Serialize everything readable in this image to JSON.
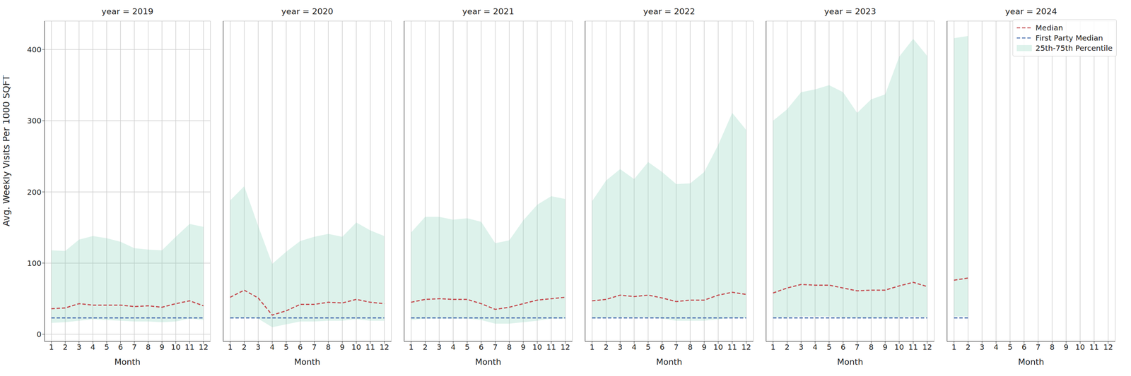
{
  "chart_data": [
    {
      "type": "line",
      "title": "year = 2019",
      "x_label": "Month",
      "y_label": "Avg. Weekly Visits Per 1000 SQFT",
      "x": [
        1,
        2,
        3,
        4,
        5,
        6,
        7,
        8,
        9,
        10,
        11,
        12
      ],
      "xlim": [
        0.5,
        12.5
      ],
      "xticks": [
        1,
        2,
        3,
        4,
        5,
        6,
        7,
        8,
        9,
        10,
        11,
        12
      ],
      "ylim": [
        -10,
        440
      ],
      "yticks": [
        0,
        100,
        200,
        300,
        400
      ],
      "grid": true,
      "series": [
        {
          "name": "Median",
          "type": "line",
          "color": "#c44e52",
          "line_style": "dashed",
          "values": [
            36,
            37,
            43,
            41,
            41,
            41,
            39,
            40,
            38,
            43,
            47,
            40
          ]
        },
        {
          "name": "First Party Median",
          "type": "line",
          "color": "#4c72b0",
          "line_style": "dashed",
          "values": [
            23,
            23,
            23,
            23,
            23,
            23,
            23,
            23,
            23,
            23,
            23,
            23
          ]
        },
        {
          "name": "25th-75th Percentile",
          "type": "area",
          "color": "#8fd3bd",
          "low": [
            16,
            17,
            19,
            21,
            20,
            19,
            18,
            18,
            17,
            18,
            22,
            20
          ],
          "high": [
            118,
            117,
            133,
            138,
            135,
            130,
            121,
            119,
            118,
            137,
            155,
            151
          ]
        }
      ]
    },
    {
      "type": "line",
      "title": "year = 2020",
      "x_label": "Month",
      "x": [
        1,
        2,
        3,
        4,
        5,
        6,
        7,
        8,
        9,
        10,
        11,
        12
      ],
      "xlim": [
        0.5,
        12.5
      ],
      "xticks": [
        1,
        2,
        3,
        4,
        5,
        6,
        7,
        8,
        9,
        10,
        11,
        12
      ],
      "ylim": [
        -10,
        440
      ],
      "yticks": [
        0,
        100,
        200,
        300,
        400
      ],
      "grid": true,
      "tick_labels": "x",
      "series": [
        {
          "name": "Median",
          "type": "line",
          "color": "#c44e52",
          "line_style": "dashed",
          "values": [
            52,
            62,
            51,
            27,
            33,
            42,
            42,
            45,
            44,
            49,
            45,
            43
          ]
        },
        {
          "name": "First Party Median",
          "type": "line",
          "color": "#4c72b0",
          "line_style": "dashed",
          "values": [
            23,
            23,
            23,
            23,
            23,
            23,
            23,
            23,
            23,
            23,
            23,
            23
          ]
        },
        {
          "name": "25th-75th Percentile",
          "type": "area",
          "color": "#8fd3bd",
          "low": [
            22,
            24,
            22,
            10,
            14,
            18,
            18,
            19,
            19,
            21,
            19,
            19
          ],
          "high": [
            188,
            208,
            152,
            99,
            116,
            131,
            137,
            141,
            137,
            157,
            146,
            138
          ]
        }
      ]
    },
    {
      "type": "line",
      "title": "year = 2021",
      "x_label": "Month",
      "x": [
        1,
        2,
        3,
        4,
        5,
        6,
        7,
        8,
        9,
        10,
        11,
        12
      ],
      "xlim": [
        0.5,
        12.5
      ],
      "xticks": [
        1,
        2,
        3,
        4,
        5,
        6,
        7,
        8,
        9,
        10,
        11,
        12
      ],
      "ylim": [
        -10,
        440
      ],
      "yticks": [
        0,
        100,
        200,
        300,
        400
      ],
      "grid": true,
      "tick_labels": "x",
      "series": [
        {
          "name": "Median",
          "type": "line",
          "color": "#c44e52",
          "line_style": "dashed",
          "values": [
            45,
            49,
            50,
            49,
            49,
            43,
            35,
            38,
            43,
            48,
            50,
            52
          ]
        },
        {
          "name": "First Party Median",
          "type": "line",
          "color": "#4c72b0",
          "line_style": "dashed",
          "values": [
            23,
            23,
            23,
            23,
            23,
            23,
            23,
            23,
            23,
            23,
            23,
            23
          ]
        },
        {
          "name": "25th-75th Percentile",
          "type": "area",
          "color": "#8fd3bd",
          "low": [
            20,
            22,
            22,
            22,
            22,
            20,
            15,
            15,
            17,
            19,
            22,
            22
          ],
          "high": [
            143,
            165,
            165,
            161,
            163,
            158,
            128,
            132,
            160,
            182,
            194,
            190
          ]
        }
      ]
    },
    {
      "type": "line",
      "title": "year = 2022",
      "x_label": "Month",
      "x": [
        1,
        2,
        3,
        4,
        5,
        6,
        7,
        8,
        9,
        10,
        11,
        12
      ],
      "xlim": [
        0.5,
        12.5
      ],
      "xticks": [
        1,
        2,
        3,
        4,
        5,
        6,
        7,
        8,
        9,
        10,
        11,
        12
      ],
      "ylim": [
        -10,
        440
      ],
      "yticks": [
        0,
        100,
        200,
        300,
        400
      ],
      "grid": true,
      "tick_labels": "x",
      "series": [
        {
          "name": "Median",
          "type": "line",
          "color": "#c44e52",
          "line_style": "dashed",
          "values": [
            47,
            49,
            55,
            53,
            55,
            51,
            46,
            48,
            48,
            55,
            59,
            56
          ]
        },
        {
          "name": "First Party Median",
          "type": "line",
          "color": "#4c72b0",
          "line_style": "dashed",
          "values": [
            23,
            23,
            23,
            23,
            23,
            23,
            23,
            23,
            23,
            23,
            23,
            23
          ]
        },
        {
          "name": "25th-75th Percentile",
          "type": "area",
          "color": "#8fd3bd",
          "low": [
            22,
            23,
            24,
            24,
            24,
            22,
            19,
            19,
            19,
            21,
            23,
            23
          ],
          "high": [
            187,
            216,
            232,
            218,
            242,
            228,
            211,
            212,
            228,
            266,
            311,
            287
          ]
        }
      ]
    },
    {
      "type": "line",
      "title": "year = 2023",
      "x_label": "Month",
      "x": [
        1,
        2,
        3,
        4,
        5,
        6,
        7,
        8,
        9,
        10,
        11,
        12
      ],
      "xlim": [
        0.5,
        12.5
      ],
      "xticks": [
        1,
        2,
        3,
        4,
        5,
        6,
        7,
        8,
        9,
        10,
        11,
        12
      ],
      "ylim": [
        -10,
        440
      ],
      "yticks": [
        0,
        100,
        200,
        300,
        400
      ],
      "grid": true,
      "tick_labels": "x",
      "series": [
        {
          "name": "Median",
          "type": "line",
          "color": "#c44e52",
          "line_style": "dashed",
          "values": [
            58,
            65,
            70,
            69,
            69,
            65,
            61,
            62,
            62,
            68,
            73,
            67
          ]
        },
        {
          "name": "First Party Median",
          "type": "line",
          "color": "#4c72b0",
          "line_style": "dashed",
          "values": [
            23,
            23,
            23,
            23,
            23,
            23,
            23,
            23,
            23,
            23,
            23,
            23
          ]
        },
        {
          "name": "25th-75th Percentile",
          "type": "area",
          "color": "#8fd3bd",
          "low": [
            24,
            24,
            25,
            25,
            25,
            24,
            23,
            23,
            23,
            24,
            25,
            24
          ],
          "high": [
            300,
            316,
            340,
            344,
            350,
            340,
            311,
            330,
            337,
            390,
            415,
            391
          ]
        }
      ]
    },
    {
      "type": "line",
      "title": "year = 2024",
      "x_label": "Month",
      "x": [
        1,
        2,
        3,
        4,
        5,
        6,
        7,
        8,
        9,
        10,
        11,
        12
      ],
      "xlim": [
        0.5,
        12.5
      ],
      "xticks": [
        1,
        2,
        3,
        4,
        5,
        6,
        7,
        8,
        9,
        10,
        11,
        12
      ],
      "ylim": [
        -10,
        440
      ],
      "yticks": [
        0,
        100,
        200,
        300,
        400
      ],
      "grid": true,
      "tick_labels": "x",
      "legend": "upper right",
      "series": [
        {
          "name": "Median",
          "type": "line",
          "color": "#c44e52",
          "line_style": "dashed",
          "values": [
            76,
            79,
            null,
            null,
            null,
            null,
            null,
            null,
            null,
            null,
            null,
            null
          ]
        },
        {
          "name": "First Party Median",
          "type": "line",
          "color": "#4c72b0",
          "line_style": "dashed",
          "values": [
            23,
            23,
            null,
            null,
            null,
            null,
            null,
            null,
            null,
            null,
            null,
            null
          ]
        },
        {
          "name": "25th-75th Percentile",
          "type": "area",
          "color": "#8fd3bd",
          "low": [
            25,
            25,
            null,
            null,
            null,
            null,
            null,
            null,
            null,
            null,
            null,
            null
          ],
          "high": [
            416,
            419,
            null,
            null,
            null,
            null,
            null,
            null,
            null,
            null,
            null,
            null
          ]
        }
      ]
    }
  ]
}
